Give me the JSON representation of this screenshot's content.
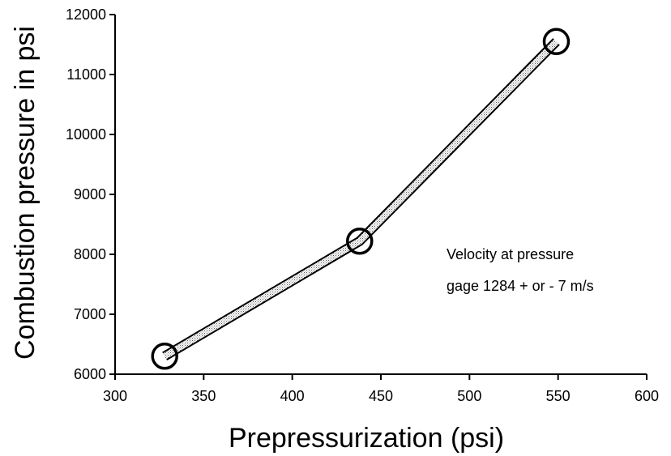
{
  "chart_data": {
    "type": "line",
    "title": "",
    "xlabel": "Prepressurization (psi)",
    "ylabel": "Combustion pressure in  psi",
    "xlim": [
      300,
      600
    ],
    "ylim": [
      6000,
      12000
    ],
    "x_ticks": [
      300,
      350,
      400,
      450,
      500,
      550,
      600
    ],
    "y_ticks": [
      6000,
      7000,
      8000,
      9000,
      10000,
      11000,
      12000
    ],
    "x": [
      328,
      438,
      549
    ],
    "series": [
      {
        "values": [
          6300,
          8220,
          11550
        ]
      }
    ],
    "annotation": {
      "line1": "Velocity at pressure",
      "line2": "gage 1284 + or - 7 m/s"
    },
    "grid": false,
    "marker": "open-circle",
    "line_style": "double-stroke stippled"
  }
}
